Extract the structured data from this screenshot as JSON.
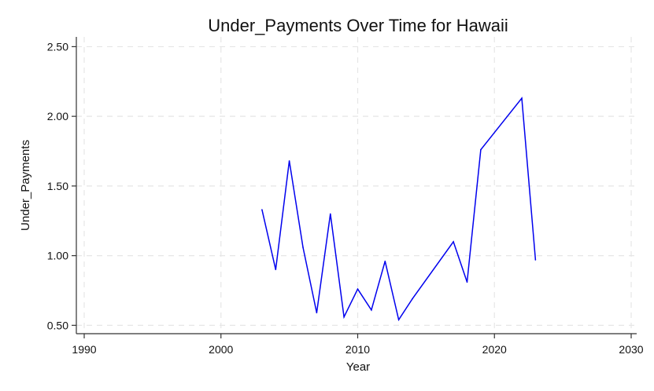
{
  "chart_data": {
    "type": "line",
    "title": "Under_Payments Over Time for Hawaii",
    "xlabel": "Year",
    "ylabel": "Under_Payments",
    "xlim": [
      1990,
      2030
    ],
    "ylim": [
      0.44,
      2.57
    ],
    "x_ticks": [
      "1990",
      "2000",
      "2010",
      "2020",
      "2030"
    ],
    "y_ticks": [
      "0.50",
      "1.00",
      "1.50",
      "2.00",
      "2.50"
    ],
    "grid": true,
    "series": [
      {
        "color": "#0000ee",
        "x": [
          2003,
          2004,
          2005,
          2006,
          2007,
          2008,
          2009,
          2010,
          2011,
          2012,
          2013,
          2014,
          2017,
          2018,
          2019,
          2022,
          2023
        ],
        "y": [
          1.33,
          0.9,
          1.68,
          1.06,
          0.59,
          1.3,
          0.56,
          0.76,
          0.61,
          0.96,
          0.54,
          0.69,
          1.1,
          0.81,
          1.76,
          2.13,
          0.97
        ]
      }
    ]
  }
}
